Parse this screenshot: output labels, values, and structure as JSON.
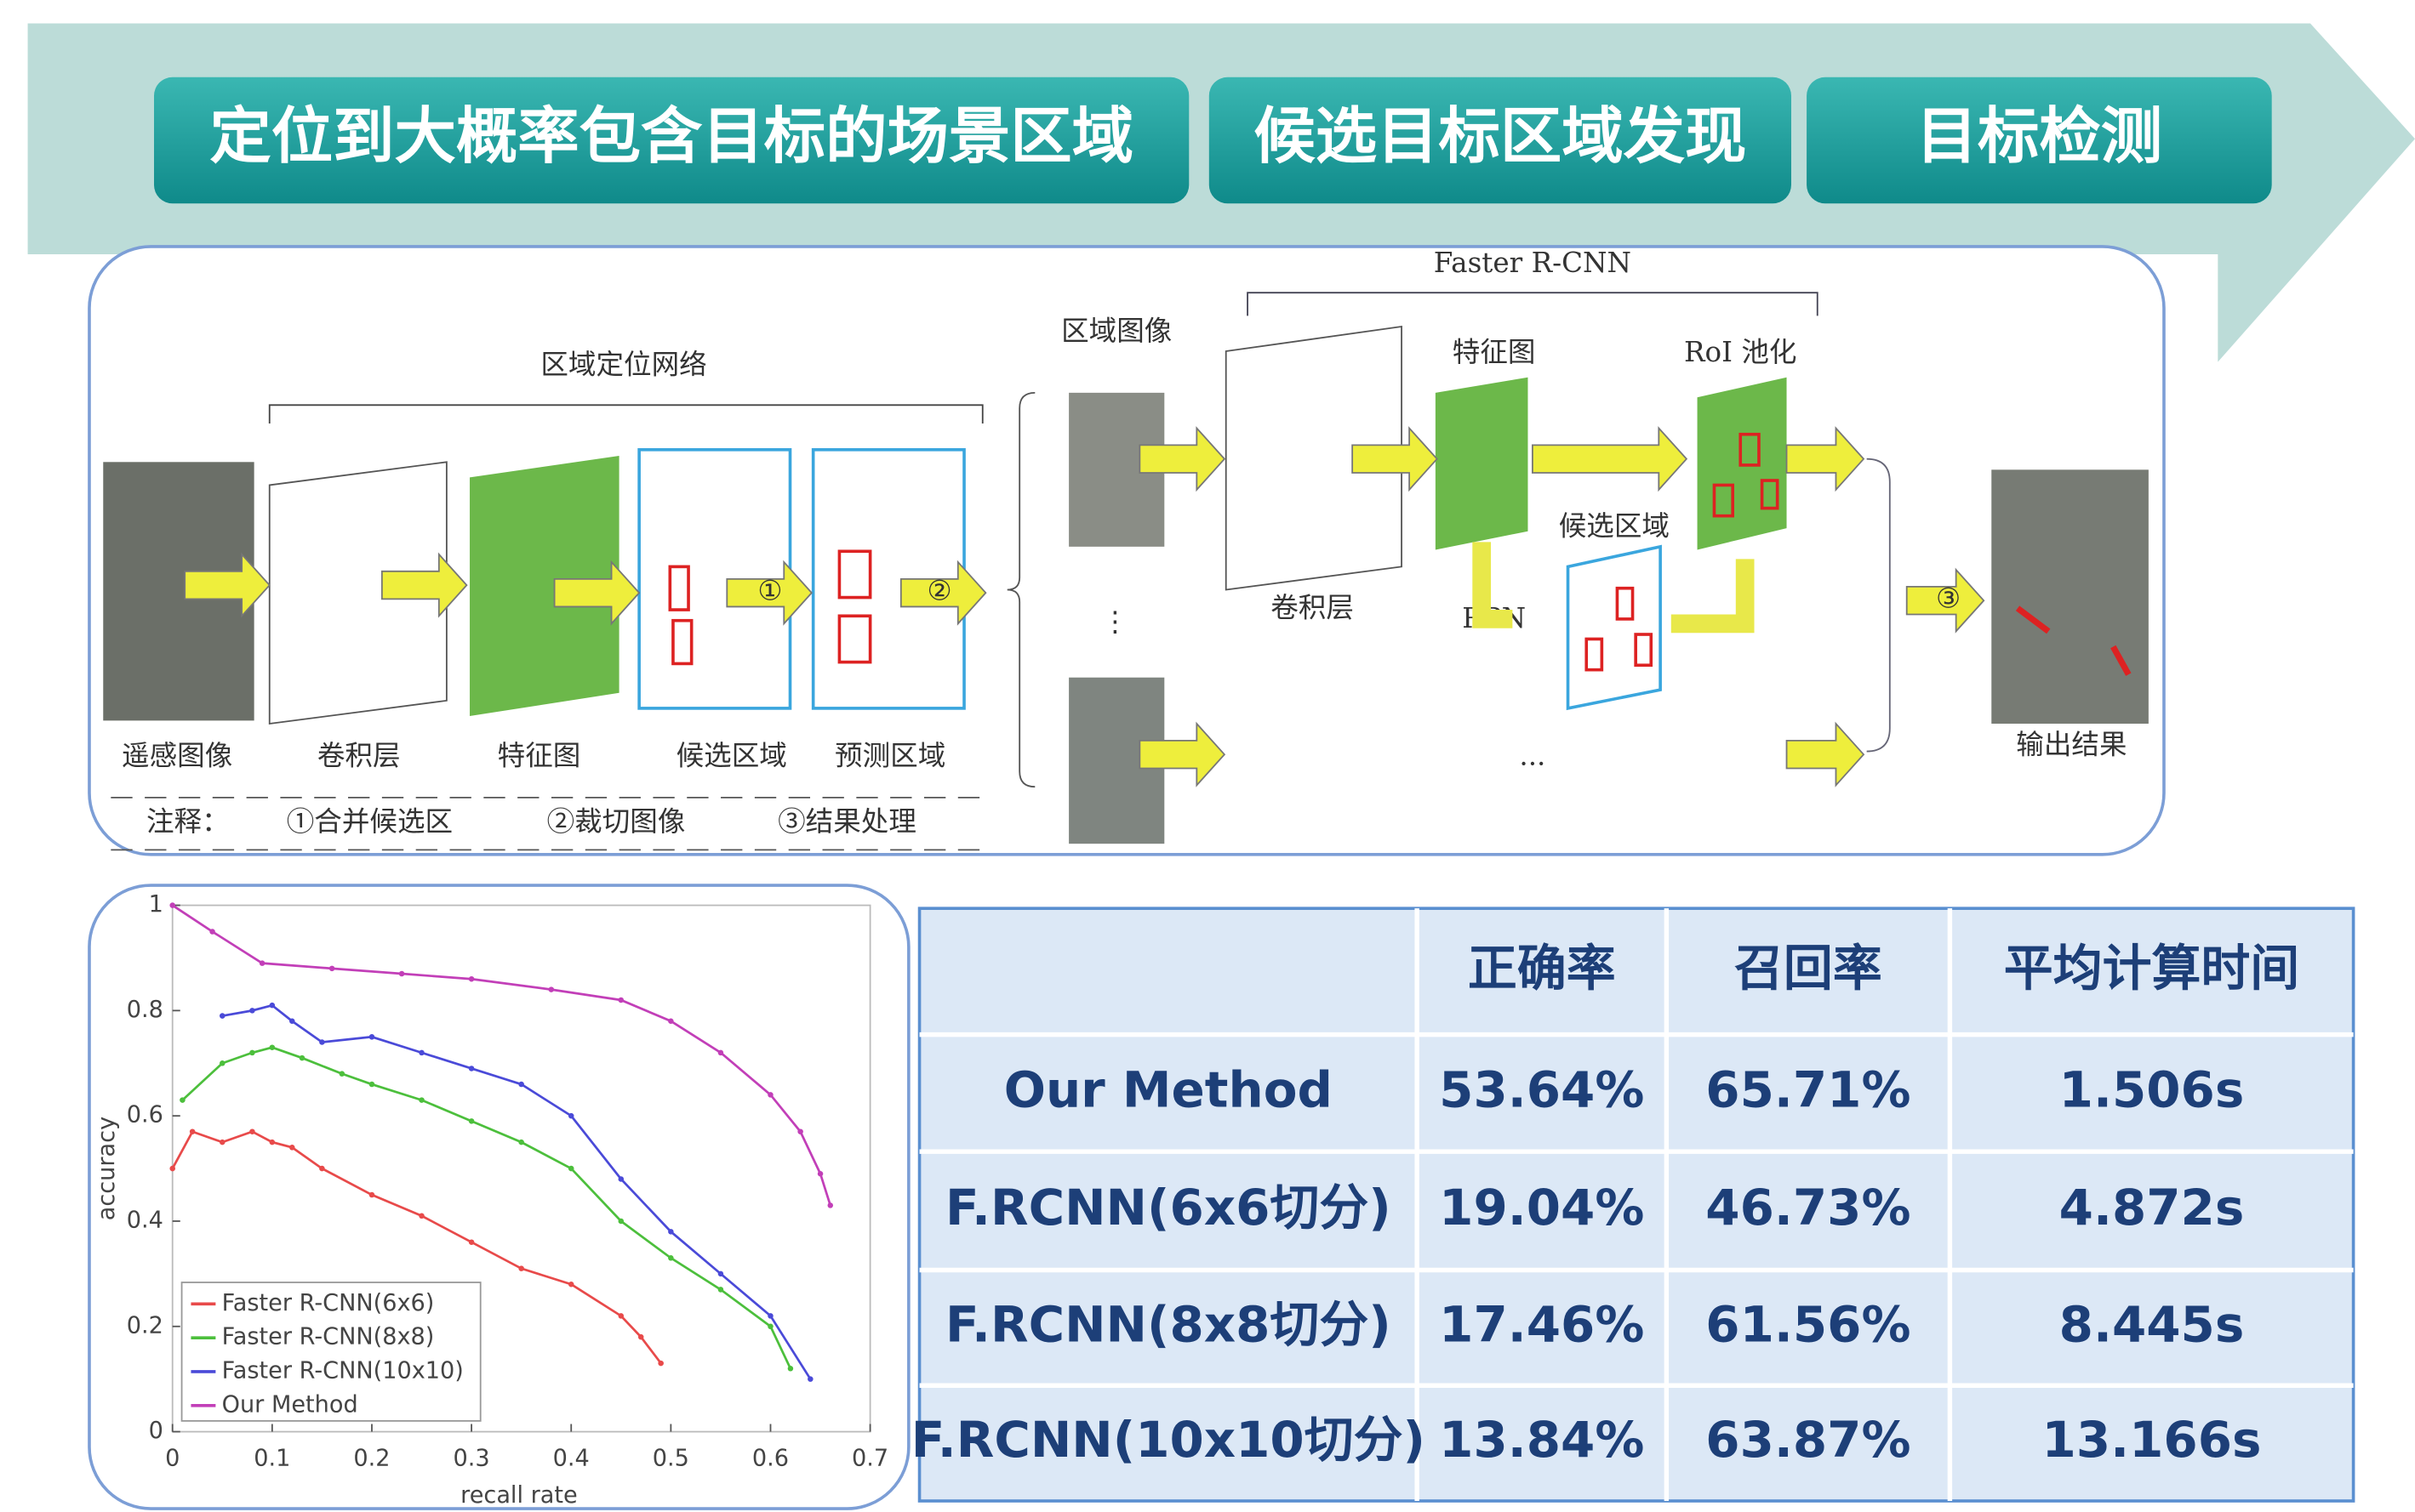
{
  "banner": {
    "steps": [
      "定位到大概率包含目标的场景区域",
      "候选目标区域发现",
      "目标检测"
    ]
  },
  "diagram": {
    "network_title": "区域定位网络",
    "faster_title": "Faster R-CNN",
    "left_labels": [
      "遥感图像",
      "卷积层",
      "特征图",
      "候选区域",
      "预测区域"
    ],
    "note": {
      "title": "注释：",
      "items": [
        "①合并候选区",
        "②裁切图像",
        "③结果处理"
      ]
    },
    "step_marks": [
      "①",
      "②",
      "③"
    ],
    "region_image": "区域图像",
    "feature_map": "特征图",
    "roi_pool": "RoI 池化",
    "candidates": "候选区域",
    "conv": "卷积层",
    "rpn": "RPN",
    "output": "输出结果",
    "vdots": "⋮",
    "ellipsis": "..."
  },
  "chart_data": {
    "type": "line",
    "x_label": "recall rate",
    "y_label": "accuracy",
    "xlim": [
      0,
      0.7
    ],
    "xticks": [
      0,
      0.1,
      0.2,
      0.3,
      0.4,
      0.5,
      0.6,
      0.7
    ],
    "ylim": [
      0,
      1
    ],
    "yticks": [
      0,
      0.2,
      0.4,
      0.6,
      0.8,
      1
    ],
    "legend": "lower-left",
    "series": [
      {
        "name": "Faster R-CNN(6x6)",
        "color": "#e84a4a",
        "x": [
          0,
          0.02,
          0.05,
          0.08,
          0.1,
          0.12,
          0.15,
          0.2,
          0.25,
          0.3,
          0.35,
          0.4,
          0.45,
          0.47,
          0.49
        ],
        "values": [
          0.5,
          0.57,
          0.55,
          0.57,
          0.55,
          0.54,
          0.5,
          0.45,
          0.41,
          0.36,
          0.31,
          0.28,
          0.22,
          0.18,
          0.13
        ]
      },
      {
        "name": "Faster R-CNN(8x8)",
        "color": "#4cbf3c",
        "x": [
          0.01,
          0.05,
          0.08,
          0.1,
          0.13,
          0.17,
          0.2,
          0.25,
          0.3,
          0.35,
          0.4,
          0.45,
          0.5,
          0.55,
          0.6,
          0.62
        ],
        "values": [
          0.63,
          0.7,
          0.72,
          0.73,
          0.71,
          0.68,
          0.66,
          0.63,
          0.59,
          0.55,
          0.5,
          0.4,
          0.33,
          0.27,
          0.2,
          0.12
        ]
      },
      {
        "name": "Faster R-CNN(10x10)",
        "color": "#4a4ad8",
        "x": [
          0.05,
          0.08,
          0.1,
          0.12,
          0.15,
          0.2,
          0.25,
          0.3,
          0.35,
          0.4,
          0.45,
          0.5,
          0.55,
          0.6,
          0.64
        ],
        "values": [
          0.79,
          0.8,
          0.81,
          0.78,
          0.74,
          0.75,
          0.72,
          0.69,
          0.66,
          0.6,
          0.48,
          0.38,
          0.3,
          0.22,
          0.1
        ]
      },
      {
        "name": "Our Method",
        "color": "#c23fb8",
        "x": [
          0,
          0.04,
          0.09,
          0.16,
          0.23,
          0.3,
          0.38,
          0.45,
          0.5,
          0.55,
          0.6,
          0.63,
          0.65,
          0.66
        ],
        "values": [
          1,
          0.95,
          0.89,
          0.88,
          0.87,
          0.86,
          0.84,
          0.82,
          0.78,
          0.72,
          0.64,
          0.57,
          0.49,
          0.43
        ]
      }
    ]
  },
  "table": {
    "columns": [
      "正确率",
      "召回率",
      "平均计算时间"
    ],
    "rows": [
      [
        "Our Method",
        "53.64%",
        "65.71%",
        "1.506s"
      ],
      [
        "F.RCNN(6x6切分)",
        "19.04%",
        "46.73%",
        "4.872s"
      ],
      [
        "F.RCNN(8x8切分)",
        "17.46%",
        "61.56%",
        "8.445s"
      ],
      [
        "F.RCNN(10x10切分)",
        "13.84%",
        "63.87%",
        "13.166s"
      ]
    ]
  }
}
